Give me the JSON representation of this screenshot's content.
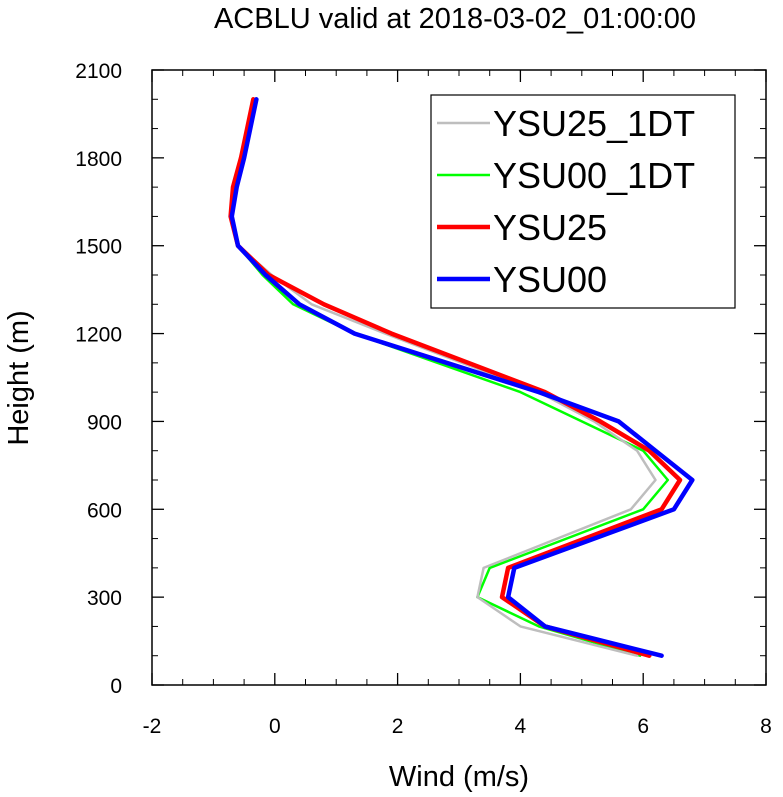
{
  "chart_data": {
    "type": "line",
    "title": "ACBLU valid at 2018-03-02_01:00:00",
    "xlabel": "Wind (m/s)",
    "ylabel": "Height (m)",
    "xlim": [
      -2,
      8
    ],
    "ylim": [
      0,
      2100
    ],
    "x_ticks": [
      -2,
      0,
      2,
      4,
      6,
      8
    ],
    "y_ticks": [
      0,
      300,
      600,
      900,
      1200,
      1500,
      1800,
      2100
    ],
    "legend_position": "top-right",
    "grid": false,
    "series": [
      {
        "name": "YSU25_1DT",
        "color": "#bebebe",
        "width": "thin",
        "points": [
          [
            5.9,
            100
          ],
          [
            4.0,
            200
          ],
          [
            3.3,
            300
          ],
          [
            3.4,
            400
          ],
          [
            5.8,
            600
          ],
          [
            6.2,
            700
          ],
          [
            5.9,
            800
          ],
          [
            5.2,
            900
          ],
          [
            4.3,
            1000
          ],
          [
            1.8,
            1200
          ],
          [
            0.6,
            1300
          ],
          [
            -0.05,
            1400
          ],
          [
            -0.6,
            1500
          ],
          [
            -0.7,
            1600
          ],
          [
            -0.65,
            1700
          ],
          [
            -0.5,
            1800
          ],
          [
            -0.3,
            2000
          ]
        ]
      },
      {
        "name": "YSU00_1DT",
        "color": "#00ff00",
        "width": "thin",
        "points": [
          [
            5.95,
            100
          ],
          [
            4.3,
            200
          ],
          [
            3.3,
            300
          ],
          [
            3.5,
            400
          ],
          [
            6.0,
            600
          ],
          [
            6.4,
            700
          ],
          [
            6.0,
            800
          ],
          [
            5.0,
            900
          ],
          [
            4.0,
            1000
          ],
          [
            1.3,
            1200
          ],
          [
            0.3,
            1300
          ],
          [
            -0.2,
            1400
          ],
          [
            -0.6,
            1500
          ],
          [
            -0.7,
            1600
          ],
          [
            -0.62,
            1700
          ],
          [
            -0.5,
            1800
          ],
          [
            -0.3,
            2000
          ]
        ]
      },
      {
        "name": "YSU25",
        "color": "#ff0000",
        "width": "thick",
        "points": [
          [
            6.1,
            100
          ],
          [
            4.4,
            200
          ],
          [
            3.7,
            300
          ],
          [
            3.8,
            400
          ],
          [
            6.3,
            600
          ],
          [
            6.6,
            700
          ],
          [
            6.1,
            800
          ],
          [
            5.3,
            900
          ],
          [
            4.4,
            1000
          ],
          [
            1.9,
            1200
          ],
          [
            0.8,
            1300
          ],
          [
            -0.1,
            1400
          ],
          [
            -0.6,
            1500
          ],
          [
            -0.72,
            1600
          ],
          [
            -0.68,
            1700
          ],
          [
            -0.55,
            1800
          ],
          [
            -0.35,
            2000
          ]
        ]
      },
      {
        "name": "YSU00",
        "color": "#0000ff",
        "width": "thick",
        "points": [
          [
            6.3,
            100
          ],
          [
            4.4,
            200
          ],
          [
            3.8,
            300
          ],
          [
            3.9,
            400
          ],
          [
            6.5,
            600
          ],
          [
            6.8,
            700
          ],
          [
            6.2,
            800
          ],
          [
            5.6,
            900
          ],
          [
            4.3,
            1000
          ],
          [
            1.3,
            1200
          ],
          [
            0.4,
            1300
          ],
          [
            -0.15,
            1400
          ],
          [
            -0.6,
            1500
          ],
          [
            -0.7,
            1600
          ],
          [
            -0.62,
            1700
          ],
          [
            -0.5,
            1800
          ],
          [
            -0.3,
            2000
          ]
        ]
      }
    ]
  }
}
